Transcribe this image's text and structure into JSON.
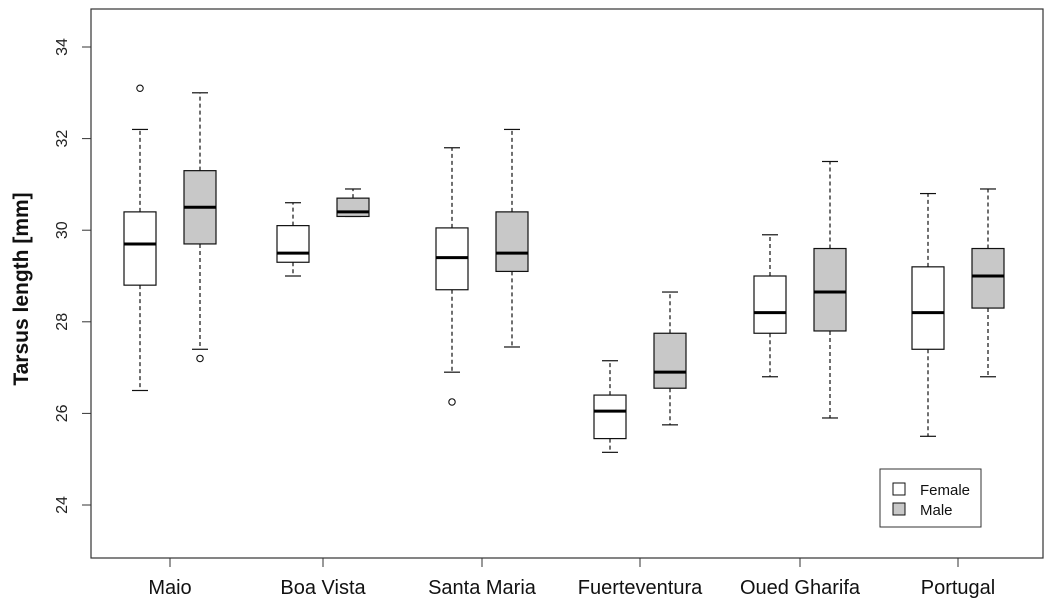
{
  "chart_data": {
    "type": "boxplot",
    "ylabel": "Tarsus length [mm]",
    "xlabel": "",
    "title": "",
    "ylim": [
      23,
      35
    ],
    "yticks": [
      24,
      26,
      28,
      30,
      32,
      34
    ],
    "grid": false,
    "legend_position": "bottom-right",
    "categories": [
      "Maio",
      "Boa Vista",
      "Santa Maria",
      "Fuerteventura",
      "Oued Gharifa",
      "Portugal"
    ],
    "series": [
      {
        "name": "Female",
        "color": "#ffffff",
        "boxes": [
          {
            "min": 26.5,
            "q1": 28.8,
            "median": 29.7,
            "q3": 30.4,
            "max": 32.2,
            "outliers": [
              33.1
            ]
          },
          {
            "min": 29.0,
            "q1": 29.3,
            "median": 29.5,
            "q3": 30.1,
            "max": 30.6,
            "outliers": []
          },
          {
            "min": 26.9,
            "q1": 28.7,
            "median": 29.4,
            "q3": 30.05,
            "max": 31.8,
            "outliers": [
              26.25
            ]
          },
          {
            "min": 25.15,
            "q1": 25.45,
            "median": 26.05,
            "q3": 26.4,
            "max": 27.15,
            "outliers": []
          },
          {
            "min": 26.8,
            "q1": 27.75,
            "median": 28.2,
            "q3": 29.0,
            "max": 29.9,
            "outliers": []
          },
          {
            "min": 25.5,
            "q1": 27.4,
            "median": 28.2,
            "q3": 29.2,
            "max": 30.8,
            "outliers": []
          }
        ]
      },
      {
        "name": "Male",
        "color": "#c8c8c8",
        "boxes": [
          {
            "min": 27.4,
            "q1": 29.7,
            "median": 30.5,
            "q3": 31.3,
            "max": 33.0,
            "outliers": [
              27.2
            ]
          },
          {
            "min": 30.3,
            "q1": 30.3,
            "median": 30.4,
            "q3": 30.7,
            "max": 30.9,
            "outliers": []
          },
          {
            "min": 27.45,
            "q1": 29.1,
            "median": 29.5,
            "q3": 30.4,
            "max": 32.2,
            "outliers": []
          },
          {
            "min": 25.75,
            "q1": 26.55,
            "median": 26.9,
            "q3": 27.75,
            "max": 28.65,
            "outliers": []
          },
          {
            "min": 25.9,
            "q1": 27.8,
            "median": 28.65,
            "q3": 29.6,
            "max": 31.5,
            "outliers": []
          },
          {
            "min": 26.8,
            "q1": 28.3,
            "median": 29.0,
            "q3": 29.6,
            "max": 30.9,
            "outliers": []
          }
        ]
      }
    ]
  }
}
